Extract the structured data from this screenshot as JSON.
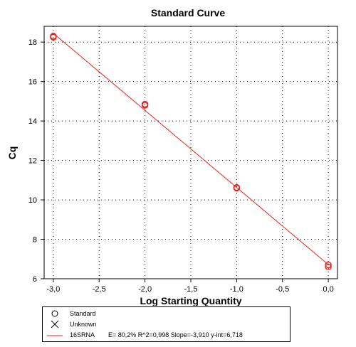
{
  "chart_data": {
    "type": "scatter",
    "title": "Standard Curve",
    "xlabel": "Log Starting Quantity",
    "ylabel": "Cq",
    "xlim": [
      -3.1,
      0.1
    ],
    "ylim": [
      6.0,
      18.8
    ],
    "x_ticks": [
      -3.0,
      -2.5,
      -2.0,
      -1.5,
      -1.0,
      -0.5,
      0.0
    ],
    "x_tick_labels": [
      "-3,0",
      "-2,5",
      "-2,0",
      "-1,5",
      "-1,0",
      "-0,5",
      "0,0"
    ],
    "y_ticks": [
      6,
      8,
      10,
      12,
      14,
      16,
      18
    ],
    "y_tick_labels": [
      "6",
      "8",
      "10",
      "12",
      "14",
      "16",
      "18"
    ],
    "grid": true,
    "series": [
      {
        "name": "Standard",
        "marker": "circle",
        "color": "#e8211d",
        "points": [
          {
            "x": -3.0,
            "y": 18.25
          },
          {
            "x": -3.0,
            "y": 18.3
          },
          {
            "x": -2.0,
            "y": 14.8
          },
          {
            "x": -2.0,
            "y": 14.85
          },
          {
            "x": -1.0,
            "y": 10.6
          },
          {
            "x": -1.0,
            "y": 10.63
          },
          {
            "x": 0.0,
            "y": 6.6
          },
          {
            "x": 0.0,
            "y": 6.7
          }
        ]
      },
      {
        "name": "Unknown",
        "marker": "x",
        "color": "#000000",
        "points": []
      }
    ],
    "fit": {
      "name": "16SRNA",
      "color": "#e8211d",
      "slope": -3.91,
      "intercept": 6.718,
      "stats_text": "E= 80,2% R^2=0,998 Slope=-3,910 y-int=6,718"
    },
    "legend": {
      "position": "bottom",
      "entries": [
        {
          "label": "Standard"
        },
        {
          "label": "Unknown"
        },
        {
          "label": "16SRNA",
          "stats": "E= 80,2% R^2=0,998 Slope=-3,910 y-int=6,718"
        }
      ]
    }
  }
}
